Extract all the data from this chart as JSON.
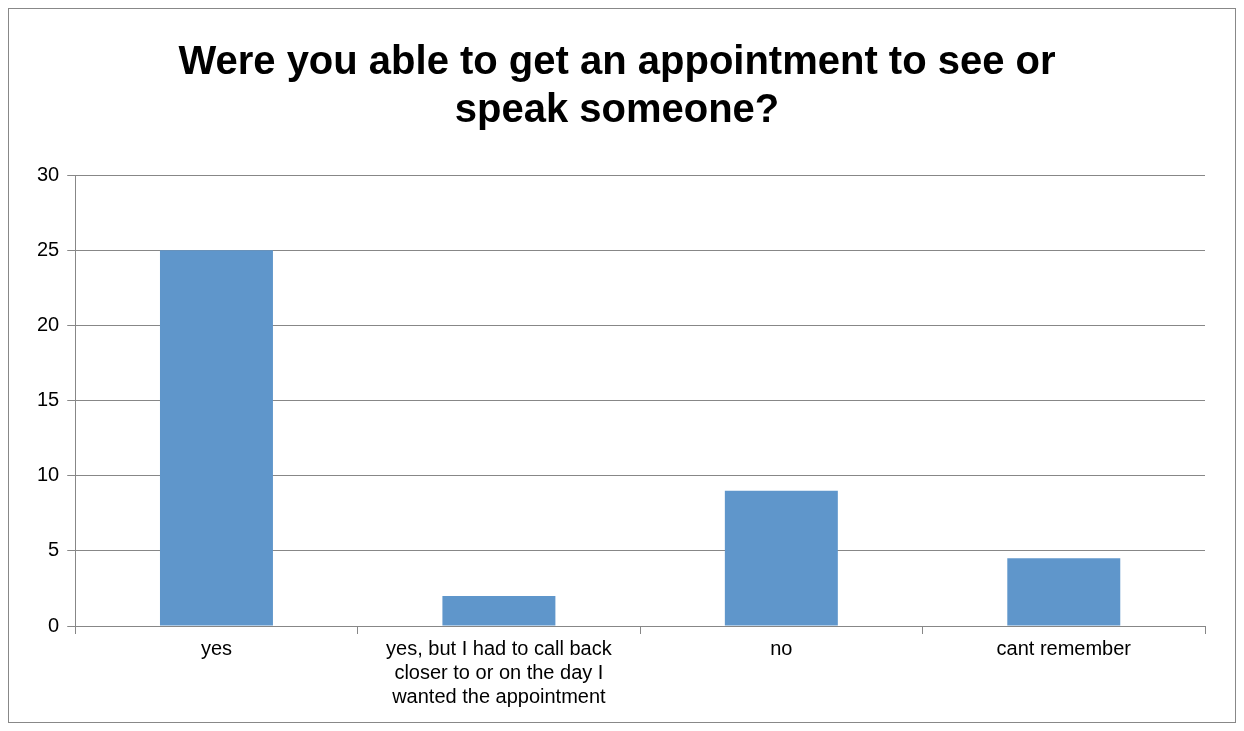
{
  "chart_data": {
    "type": "bar",
    "title": "Were you able to get an appointment to see or speak someone?",
    "categories": [
      "yes",
      "yes, but I had to call back closer to or on the day I wanted the appointment",
      "no",
      "cant remember"
    ],
    "values": [
      25,
      2,
      9,
      4.5
    ],
    "color": "#5f96cb",
    "ylim": [
      0,
      30
    ],
    "yticks": [
      0,
      5,
      10,
      15,
      20,
      25,
      30
    ],
    "grid": "y",
    "legend": false
  }
}
